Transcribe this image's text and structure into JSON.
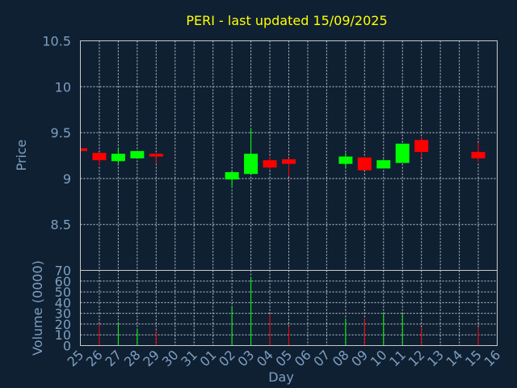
{
  "chart_data": {
    "type": "candlestick",
    "title": "PERI - last updated 15/09/2025",
    "price_axis": {
      "label": "Price",
      "ylim": [
        8.0,
        10.5
      ],
      "ticks": [
        "10.5",
        "10",
        "9.5",
        "9",
        "8.5"
      ],
      "tick_values": [
        10.5,
        10.0,
        9.5,
        9.0,
        8.5
      ]
    },
    "volume_axis": {
      "label": "Volume (0000)",
      "ylim": [
        0,
        70
      ],
      "ticks": [
        "70",
        "60",
        "50",
        "40",
        "30",
        "20",
        "10",
        "0"
      ],
      "tick_values": [
        70,
        60,
        50,
        40,
        30,
        20,
        10,
        0
      ]
    },
    "x_axis": {
      "label": "Day",
      "ticks": [
        "25",
        "26",
        "27",
        "28",
        "29",
        "30",
        "31",
        "01",
        "02",
        "03",
        "04",
        "05",
        "06",
        "07",
        "08",
        "09",
        "10",
        "11",
        "12",
        "13",
        "14",
        "15",
        "16"
      ]
    },
    "colors": {
      "up": "#00ff00",
      "down": "#ff0000",
      "title": "#ffff00",
      "axis_text": "#7f9fbf",
      "grid": "#c8c8c8"
    },
    "candles": [
      {
        "day": "25",
        "open": 9.33,
        "close": 9.3,
        "high": 9.33,
        "low": 9.3
      },
      {
        "day": "26",
        "open": 9.28,
        "close": 9.2,
        "high": 9.28,
        "low": 9.14
      },
      {
        "day": "27",
        "open": 9.19,
        "close": 9.27,
        "high": 9.33,
        "low": 9.15
      },
      {
        "day": "28",
        "open": 9.22,
        "close": 9.3,
        "high": 9.3,
        "low": 9.22
      },
      {
        "day": "29",
        "open": 9.27,
        "close": 9.24,
        "high": 9.27,
        "low": 9.16
      },
      {
        "day": "02",
        "open": 8.99,
        "close": 9.07,
        "high": 9.08,
        "low": 8.9
      },
      {
        "day": "03",
        "open": 9.05,
        "close": 9.27,
        "high": 9.55,
        "low": 9.05
      },
      {
        "day": "04",
        "open": 9.2,
        "close": 9.12,
        "high": 9.24,
        "low": 9.1
      },
      {
        "day": "05",
        "open": 9.21,
        "close": 9.16,
        "high": 9.22,
        "low": 9.02
      },
      {
        "day": "08",
        "open": 9.16,
        "close": 9.24,
        "high": 9.28,
        "low": 9.11
      },
      {
        "day": "09",
        "open": 9.23,
        "close": 9.09,
        "high": 9.23,
        "low": 9.09
      },
      {
        "day": "10",
        "open": 9.11,
        "close": 9.2,
        "high": 9.21,
        "low": 9.11
      },
      {
        "day": "11",
        "open": 9.17,
        "close": 9.38,
        "high": 9.38,
        "low": 9.17
      },
      {
        "day": "12",
        "open": 9.42,
        "close": 9.29,
        "high": 9.45,
        "low": 9.23
      },
      {
        "day": "15",
        "open": 9.29,
        "close": 9.22,
        "high": 9.39,
        "low": 9.18
      }
    ],
    "volumes": [
      {
        "day": "26",
        "value": 20,
        "direction": "down"
      },
      {
        "day": "27",
        "value": 21,
        "direction": "up"
      },
      {
        "day": "28",
        "value": 15,
        "direction": "up"
      },
      {
        "day": "29",
        "value": 14,
        "direction": "down"
      },
      {
        "day": "02",
        "value": 36,
        "direction": "up"
      },
      {
        "day": "03",
        "value": 64,
        "direction": "up"
      },
      {
        "day": "04",
        "value": 29,
        "direction": "down"
      },
      {
        "day": "05",
        "value": 18,
        "direction": "down"
      },
      {
        "day": "08",
        "value": 25,
        "direction": "up"
      },
      {
        "day": "09",
        "value": 25,
        "direction": "down"
      },
      {
        "day": "10",
        "value": 31,
        "direction": "up"
      },
      {
        "day": "11",
        "value": 30,
        "direction": "up"
      },
      {
        "day": "12",
        "value": 17,
        "direction": "down"
      },
      {
        "day": "15",
        "value": 17,
        "direction": "down"
      }
    ]
  }
}
